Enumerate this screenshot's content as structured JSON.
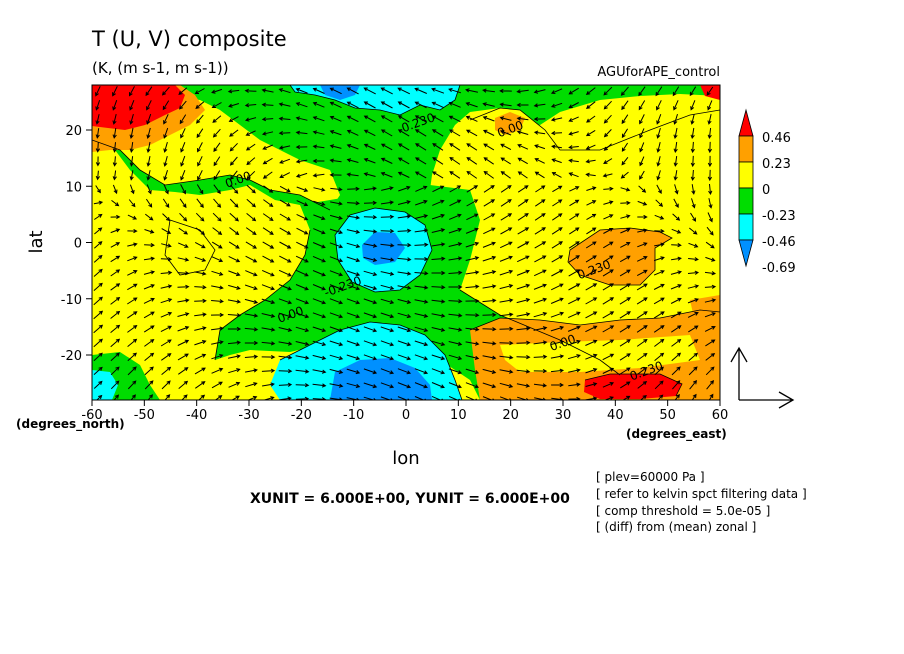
{
  "chart_data": {
    "type": "contour",
    "title": "T (U, V) composite",
    "subtitle": "(K, (m s-1, m s-1))",
    "run_label": "AGUforAPE_control",
    "xlabel": "lon",
    "ylabel": "lat",
    "x_unit_label": "(degrees_east)",
    "y_unit_label": "(degrees_north)",
    "xlim": [
      -60,
      60
    ],
    "ylim": [
      -28,
      28
    ],
    "x_ticks": [
      "-60",
      "-50",
      "-40",
      "-30",
      "-20",
      "-10",
      "0",
      "10",
      "20",
      "30",
      "40",
      "50",
      "60"
    ],
    "y_ticks": [
      "20",
      "10",
      "0",
      "-10",
      "-20"
    ],
    "y_tick_values": [
      20,
      10,
      0,
      -10,
      -20
    ],
    "colorbar": {
      "levels": [
        "0.46",
        "0.23",
        "0",
        "-0.23",
        "-0.46",
        "-0.69"
      ],
      "colors": [
        "#ff0000",
        "#ffa000",
        "#ffff00",
        "#00dd00",
        "#00ffff",
        "#0090ff"
      ]
    },
    "contour_labels": [
      {
        "text": "-0.230",
        "x": 2,
        "y": 21
      },
      {
        "text": "0.00",
        "x": 20,
        "y": 20
      },
      {
        "text": "0.00",
        "x": -32,
        "y": 11
      },
      {
        "text": "-0.230",
        "x": -12,
        "y": -8
      },
      {
        "text": "0.00",
        "x": -22,
        "y": -13
      },
      {
        "text": "0.230",
        "x": 36,
        "y": -5
      },
      {
        "text": "0.00",
        "x": 30,
        "y": -18
      },
      {
        "text": "0.230",
        "x": 46,
        "y": -23
      }
    ],
    "unit_text": "XUNIT = 6.000E+00, YUNIT = 6.000E+00",
    "notes": [
      "[ plev=60000 Pa ]",
      "[ refer to kelvin spct filtering data ]",
      "[ comp threshold = 5.0e-05 ]",
      "[ (diff) from (mean) zonal ]"
    ],
    "grid": false
  }
}
